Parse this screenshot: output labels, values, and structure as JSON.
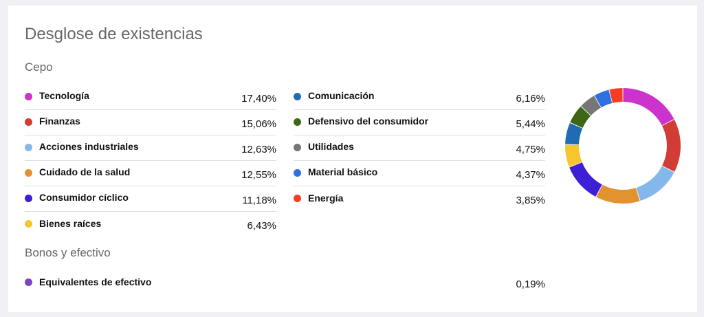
{
  "title": "Desglose de existencias",
  "section_equity": "Cepo",
  "section_bonds": "Bonos y efectivo",
  "left_items": [
    {
      "label": "Tecnología",
      "value": "17,40%",
      "color": "#cc33cc"
    },
    {
      "label": "Finanzas",
      "value": "15,06%",
      "color": "#d13d34"
    },
    {
      "label": "Acciones industriales",
      "value": "12,63%",
      "color": "#85b8ea"
    },
    {
      "label": "Cuidado de la salud",
      "value": "12,55%",
      "color": "#e2922f"
    },
    {
      "label": "Consumidor cíclico",
      "value": "11,18%",
      "color": "#3d1fd6"
    },
    {
      "label": "Bienes raíces",
      "value": "6,43%",
      "color": "#f6c530"
    }
  ],
  "right_items": [
    {
      "label": "Comunicación",
      "value": "6,16%",
      "color": "#1f6cb5"
    },
    {
      "label": "Defensivo del consumidor",
      "value": "5,44%",
      "color": "#3d6616"
    },
    {
      "label": "Utilidades",
      "value": "4,75%",
      "color": "#777777"
    },
    {
      "label": "Material básico",
      "value": "4,37%",
      "color": "#2f6fe0"
    },
    {
      "label": "Energía",
      "value": "3,85%",
      "color": "#f43d22"
    }
  ],
  "cash_item": {
    "label": "Equivalentes de efectivo",
    "value": "0,19%",
    "color": "#7b44c2"
  },
  "chart_data": {
    "type": "pie",
    "categories": [
      "Tecnología",
      "Finanzas",
      "Acciones industriales",
      "Cuidado de la salud",
      "Consumidor cíclico",
      "Bienes raíces",
      "Comunicación",
      "Defensivo del consumidor",
      "Utilidades",
      "Material básico",
      "Energía"
    ],
    "values": [
      17.4,
      15.06,
      12.63,
      12.55,
      11.18,
      6.43,
      6.16,
      5.44,
      4.75,
      4.37,
      3.85
    ],
    "colors": [
      "#cc33cc",
      "#d13d34",
      "#85b8ea",
      "#e2922f",
      "#3d1fd6",
      "#f6c530",
      "#1f6cb5",
      "#3d6616",
      "#777777",
      "#2f6fe0",
      "#f43d22"
    ]
  }
}
